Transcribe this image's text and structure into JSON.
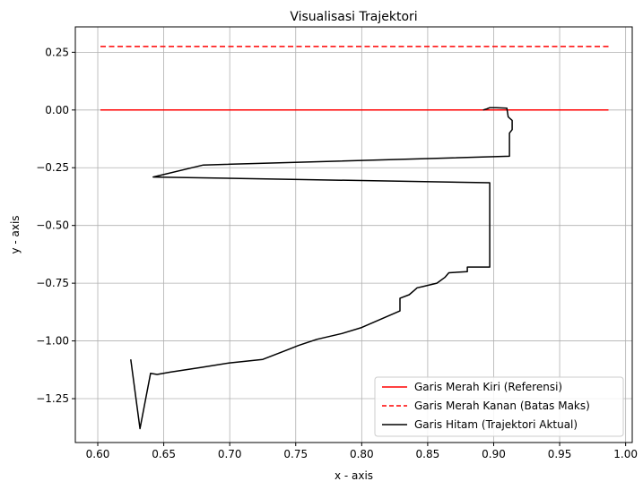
{
  "chart_data": {
    "type": "line",
    "title": "Visualisasi Trajektori",
    "xlabel": "x - axis",
    "ylabel": "y - axis",
    "xlim": [
      0.583,
      1.005
    ],
    "ylim": [
      -1.44,
      0.36
    ],
    "grid": true,
    "legend_position": "lower-right",
    "x_ticks": [
      0.6,
      0.65,
      0.7,
      0.75,
      0.8,
      0.85,
      0.9,
      0.95,
      1.0
    ],
    "x_tick_labels": [
      "0.60",
      "0.65",
      "0.70",
      "0.75",
      "0.80",
      "0.85",
      "0.90",
      "0.95",
      "1.00"
    ],
    "y_ticks": [
      0.25,
      0.0,
      -0.25,
      -0.5,
      -0.75,
      -1.0,
      -1.25
    ],
    "y_tick_labels": [
      "0.25",
      "0.00",
      "−0.25",
      "−0.50",
      "−0.75",
      "−1.00",
      "−1.25"
    ],
    "series": [
      {
        "name": "Garis Merah Kiri (Referensi)",
        "color": "#ff0000",
        "style": "solid",
        "points": [
          [
            0.602,
            0.0
          ],
          [
            0.987,
            0.0
          ]
        ]
      },
      {
        "name": "Garis Merah Kanan (Batas Maks)",
        "color": "#ff0000",
        "style": "dashed",
        "points": [
          [
            0.602,
            0.275
          ],
          [
            0.987,
            0.275
          ]
        ]
      },
      {
        "name": "Garis Hitam (Trajektori Aktual)",
        "color": "#000000",
        "style": "solid",
        "points": [
          [
            0.892,
            0.0
          ],
          [
            0.895,
            0.005
          ],
          [
            0.897,
            0.01
          ],
          [
            0.902,
            0.01
          ],
          [
            0.91,
            0.008
          ],
          [
            0.911,
            -0.03
          ],
          [
            0.914,
            -0.045
          ],
          [
            0.914,
            -0.085
          ],
          [
            0.912,
            -0.1
          ],
          [
            0.912,
            -0.2
          ],
          [
            0.68,
            -0.238
          ],
          [
            0.642,
            -0.29
          ],
          [
            0.897,
            -0.315
          ],
          [
            0.897,
            -0.68
          ],
          [
            0.88,
            -0.68
          ],
          [
            0.88,
            -0.7
          ],
          [
            0.866,
            -0.705
          ],
          [
            0.863,
            -0.725
          ],
          [
            0.857,
            -0.75
          ],
          [
            0.846,
            -0.765
          ],
          [
            0.842,
            -0.77
          ],
          [
            0.84,
            -0.78
          ],
          [
            0.836,
            -0.8
          ],
          [
            0.829,
            -0.815
          ],
          [
            0.829,
            -0.83
          ],
          [
            0.829,
            -0.87
          ],
          [
            0.8,
            -0.942
          ],
          [
            0.785,
            -0.968
          ],
          [
            0.766,
            -0.993
          ],
          [
            0.752,
            -1.02
          ],
          [
            0.743,
            -1.04
          ],
          [
            0.725,
            -1.08
          ],
          [
            0.7,
            -1.095
          ],
          [
            0.678,
            -1.115
          ],
          [
            0.655,
            -1.135
          ],
          [
            0.645,
            -1.145
          ],
          [
            0.64,
            -1.14
          ],
          [
            0.632,
            -1.38
          ],
          [
            0.625,
            -1.08
          ]
        ]
      }
    ]
  }
}
